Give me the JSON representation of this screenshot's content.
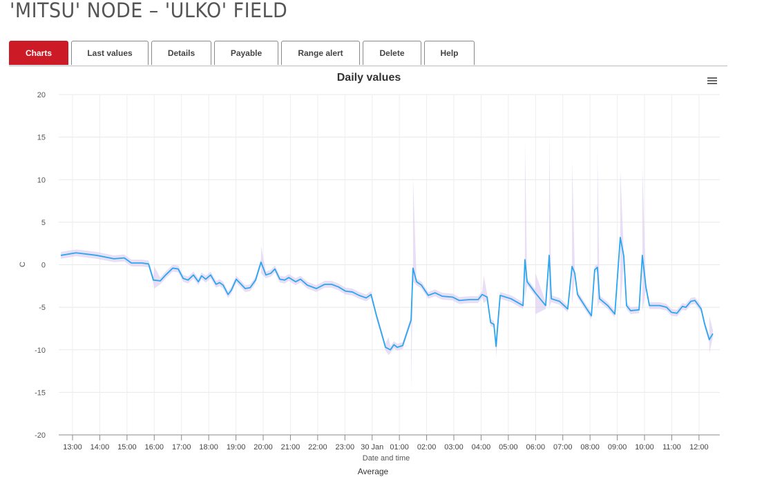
{
  "title": "'MITSU' NODE – 'ULKO' FIELD",
  "tabs": [
    {
      "label": "Charts",
      "active": true
    },
    {
      "label": "Last values"
    },
    {
      "label": "Details"
    },
    {
      "label": "Payable"
    },
    {
      "label": "Range alert"
    },
    {
      "label": "Delete"
    },
    {
      "label": "Help"
    }
  ],
  "chart_data": {
    "type": "line",
    "title": "Daily values",
    "xlabel": "Date and time",
    "ylabel": "C",
    "legend": "Average",
    "ylim": [
      -20,
      20
    ],
    "yticks": [
      20,
      15,
      10,
      5,
      0,
      -5,
      -10,
      -15,
      -20
    ],
    "xtick_labels": [
      "13:00",
      "14:00",
      "15:00",
      "16:00",
      "17:00",
      "18:00",
      "19:00",
      "20:00",
      "21:00",
      "22:00",
      "23:00",
      "30 Jan",
      "01:00",
      "02:00",
      "03:00",
      "04:00",
      "05:00",
      "06:00",
      "07:00",
      "08:00",
      "09:00",
      "10:00",
      "11:00",
      "12:00"
    ],
    "x_unit": "hours since 13:00",
    "colors": {
      "line": "#2aa6f0",
      "range": "#d9c8f0"
    },
    "series": [
      {
        "name": "Average",
        "points": [
          [
            -0.43,
            1.1
          ],
          [
            0.13,
            1.4
          ],
          [
            0.89,
            1.1
          ],
          [
            1.52,
            0.7
          ],
          [
            1.9,
            0.8
          ],
          [
            2.16,
            0.2
          ],
          [
            2.54,
            0.2
          ],
          [
            2.79,
            0.1
          ],
          [
            2.97,
            -1.8
          ],
          [
            3.22,
            -1.9
          ],
          [
            3.42,
            -1.2
          ],
          [
            3.68,
            -0.4
          ],
          [
            3.88,
            -0.5
          ],
          [
            4.06,
            -1.6
          ],
          [
            4.24,
            -1.8
          ],
          [
            4.44,
            -1.2
          ],
          [
            4.62,
            -2.0
          ],
          [
            4.74,
            -1.3
          ],
          [
            4.89,
            -1.7
          ],
          [
            5.07,
            -1.2
          ],
          [
            5.27,
            -2.3
          ],
          [
            5.4,
            -2.1
          ],
          [
            5.53,
            -2.4
          ],
          [
            5.71,
            -3.5
          ],
          [
            5.83,
            -3.0
          ],
          [
            6.01,
            -1.7
          ],
          [
            6.16,
            -2.2
          ],
          [
            6.34,
            -2.8
          ],
          [
            6.52,
            -2.7
          ],
          [
            6.72,
            -1.8
          ],
          [
            6.92,
            0.3
          ],
          [
            7.1,
            -1.2
          ],
          [
            7.28,
            -1.0
          ],
          [
            7.43,
            -0.5
          ],
          [
            7.61,
            -1.7
          ],
          [
            7.79,
            -1.8
          ],
          [
            7.94,
            -1.5
          ],
          [
            8.19,
            -2.0
          ],
          [
            8.37,
            -1.7
          ],
          [
            8.62,
            -2.4
          ],
          [
            8.95,
            -2.8
          ],
          [
            9.26,
            -2.3
          ],
          [
            9.51,
            -2.3
          ],
          [
            9.76,
            -2.6
          ],
          [
            10.02,
            -3.1
          ],
          [
            10.27,
            -3.2
          ],
          [
            10.52,
            -3.6
          ],
          [
            10.78,
            -3.9
          ],
          [
            10.96,
            -3.5
          ],
          [
            11.16,
            -6.0
          ],
          [
            11.34,
            -8.0
          ],
          [
            11.49,
            -9.7
          ],
          [
            11.67,
            -10.0
          ],
          [
            11.8,
            -9.4
          ],
          [
            11.92,
            -9.7
          ],
          [
            12.12,
            -9.5
          ],
          [
            12.43,
            -6.5
          ],
          [
            12.5,
            -0.4
          ],
          [
            12.63,
            -2.0
          ],
          [
            12.81,
            -2.4
          ],
          [
            13.06,
            -3.6
          ],
          [
            13.31,
            -3.3
          ],
          [
            13.57,
            -3.7
          ],
          [
            13.95,
            -3.8
          ],
          [
            14.2,
            -4.2
          ],
          [
            14.58,
            -4.1
          ],
          [
            14.89,
            -4.1
          ],
          [
            15.04,
            -3.5
          ],
          [
            15.22,
            -3.8
          ],
          [
            15.35,
            -6.8
          ],
          [
            15.47,
            -7.0
          ],
          [
            15.55,
            -9.6
          ],
          [
            15.7,
            -3.6
          ],
          [
            16.1,
            -4.0
          ],
          [
            16.54,
            -4.8
          ],
          [
            16.61,
            0.6
          ],
          [
            16.69,
            -2.0
          ],
          [
            16.99,
            -3.3
          ],
          [
            17.37,
            -4.8
          ],
          [
            17.5,
            1.1
          ],
          [
            17.58,
            -4.0
          ],
          [
            17.88,
            -4.3
          ],
          [
            18.18,
            -5.2
          ],
          [
            18.34,
            -0.2
          ],
          [
            18.44,
            -1.0
          ],
          [
            18.54,
            -3.5
          ],
          [
            18.84,
            -5.0
          ],
          [
            19.05,
            -6.0
          ],
          [
            19.17,
            -0.6
          ],
          [
            19.27,
            -0.3
          ],
          [
            19.35,
            -4.0
          ],
          [
            19.65,
            -4.8
          ],
          [
            19.91,
            -5.8
          ],
          [
            20.11,
            3.2
          ],
          [
            20.24,
            1.0
          ],
          [
            20.34,
            -4.8
          ],
          [
            20.49,
            -5.4
          ],
          [
            20.8,
            -5.3
          ],
          [
            20.92,
            1.1
          ],
          [
            21.05,
            -2.6
          ],
          [
            21.18,
            -4.8
          ],
          [
            21.56,
            -4.8
          ],
          [
            21.81,
            -5.0
          ],
          [
            21.99,
            -5.6
          ],
          [
            22.19,
            -5.7
          ],
          [
            22.39,
            -4.9
          ],
          [
            22.52,
            -5.0
          ],
          [
            22.7,
            -4.3
          ],
          [
            22.85,
            -4.2
          ],
          [
            23.08,
            -5.2
          ],
          [
            23.21,
            -7.0
          ],
          [
            23.38,
            -8.8
          ],
          [
            23.51,
            -8.1
          ]
        ]
      }
    ],
    "range_spikes": [
      [
        3.0,
        -2.8,
        -0.2
      ],
      [
        6.92,
        -1.0,
        2.2
      ],
      [
        11.6,
        -10.6,
        -8.5
      ],
      [
        12.43,
        -15.0,
        -5.0
      ],
      [
        12.5,
        -2.0,
        10.3
      ],
      [
        15.1,
        -4.5,
        -1.3
      ],
      [
        15.55,
        -11.0,
        -8.0
      ],
      [
        16.61,
        -4.0,
        14.8
      ],
      [
        17.0,
        -5.8,
        -1.0
      ],
      [
        17.5,
        -5.0,
        15.8
      ],
      [
        18.34,
        -4.8,
        12.3
      ],
      [
        19.27,
        -5.0,
        13.7
      ],
      [
        20.11,
        -5.5,
        11.2
      ],
      [
        20.92,
        -5.5,
        11.6
      ],
      [
        23.38,
        -10.4,
        -6.0
      ]
    ]
  }
}
